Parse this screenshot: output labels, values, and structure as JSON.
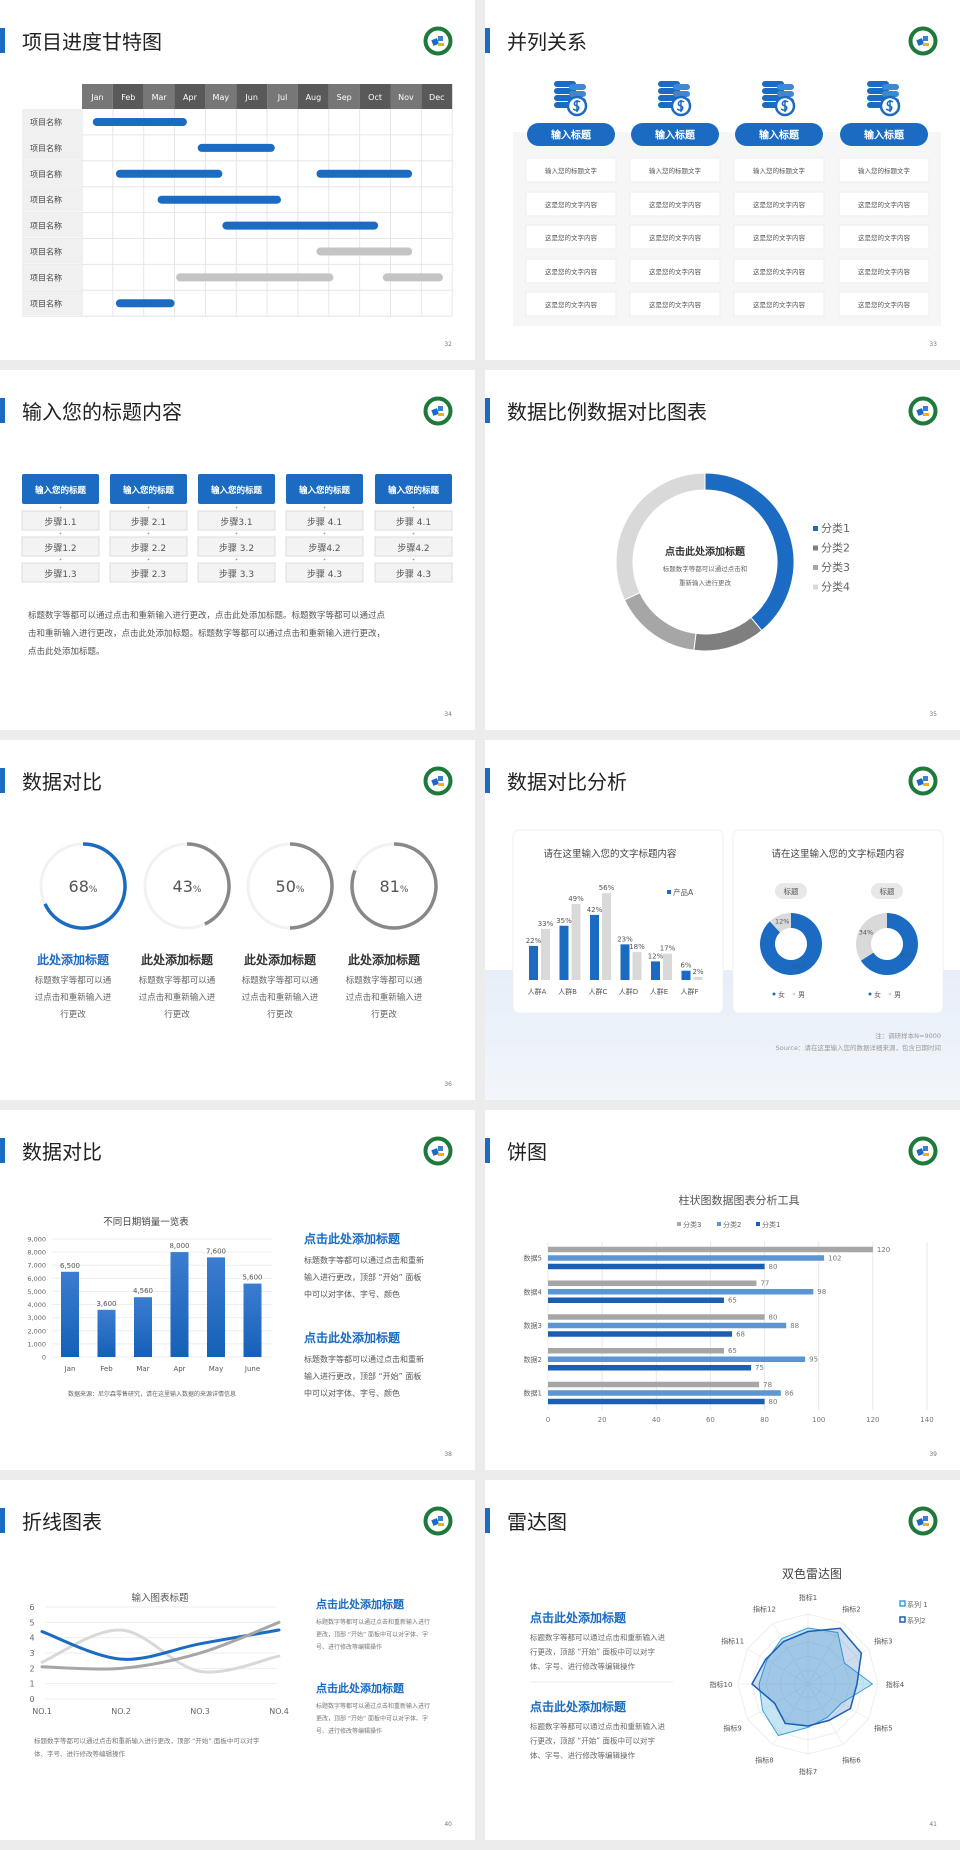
{
  "colors": {
    "accent": "#1a6bc1",
    "gray_dark": "#7f7f7f",
    "gray_mid": "#a6a6a6",
    "gray_light": "#d9d9d9",
    "logo_green": "#1e7a3a"
  },
  "logo_icon": "medical-emblem-icon",
  "slides": [
    {
      "page": "32",
      "title": "项目进度甘特图",
      "months": [
        "Jan",
        "Feb",
        "Mar",
        "Apr",
        "May",
        "Jun",
        "Jul",
        "Aug",
        "Sep",
        "Oct",
        "Nov",
        "Dec"
      ],
      "rows": [
        {
          "label": "项目名称",
          "bars": [
            {
              "start": 0.35,
              "end": 3.4,
              "color": "blue"
            }
          ]
        },
        {
          "label": "项目名称",
          "bars": [
            {
              "start": 3.75,
              "end": 6.25,
              "color": "blue"
            }
          ]
        },
        {
          "label": "项目名称",
          "bars": [
            {
              "start": 1.1,
              "end": 4.55,
              "color": "blue"
            },
            {
              "start": 7.6,
              "end": 10.7,
              "color": "blue"
            }
          ]
        },
        {
          "label": "项目名称",
          "bars": [
            {
              "start": 2.45,
              "end": 6.45,
              "color": "blue"
            }
          ]
        },
        {
          "label": "项目名称",
          "bars": [
            {
              "start": 4.55,
              "end": 9.6,
              "color": "blue"
            }
          ]
        },
        {
          "label": "项目名称",
          "bars": [
            {
              "start": 7.6,
              "end": 10.7,
              "color": "gray"
            }
          ]
        },
        {
          "label": "项目名称",
          "bars": [
            {
              "start": 3.05,
              "end": 8.15,
              "color": "gray"
            },
            {
              "start": 9.75,
              "end": 11.7,
              "color": "gray"
            }
          ]
        },
        {
          "label": "项目名称",
          "bars": [
            {
              "start": 1.1,
              "end": 3.0,
              "color": "blue"
            }
          ]
        }
      ]
    },
    {
      "page": "33",
      "title": "并列关系",
      "icon": "coin-stack-dollar-icon",
      "columns": [
        {
          "heading": "输入标题",
          "cells": [
            "输入您的标题文字",
            "这是您的文字内容",
            "这是您的文字内容",
            "这是您的文字内容",
            "这是您的文字内容"
          ]
        },
        {
          "heading": "输入标题",
          "cells": [
            "输入您的标题文字",
            "这是您的文字内容",
            "这是您的文字内容",
            "这是您的文字内容",
            "这是您的文字内容"
          ]
        },
        {
          "heading": "输入标题",
          "cells": [
            "输入您的标题文字",
            "这是您的文字内容",
            "这是您的文字内容",
            "这是您的文字内容",
            "这是您的文字内容"
          ]
        },
        {
          "heading": "输入标题",
          "cells": [
            "输入您的标题文字",
            "这是您的文字内容",
            "这是您的文字内容",
            "这是您的文字内容",
            "这是您的文字内容"
          ]
        }
      ]
    },
    {
      "page": "34",
      "title": "输入您的标题内容",
      "columns": [
        {
          "heading": "输入您的标题",
          "steps": [
            "步骤1.1",
            "步骤1.2",
            "步骤1.3"
          ]
        },
        {
          "heading": "输入您的标题",
          "steps": [
            "步骤 2.1",
            "步骤 2.2",
            "步骤 2.3"
          ]
        },
        {
          "heading": "输入您的标题",
          "steps": [
            "步骤3.1",
            "步骤 3.2",
            "步骤 3.3"
          ]
        },
        {
          "heading": "输入您的标题",
          "steps": [
            "步骤 4.1",
            "步骤4.2",
            "步骤 4.3"
          ]
        },
        {
          "heading": "输入您的标题",
          "steps": [
            "步骤 4.1",
            "步骤4.2",
            "步骤 4.3"
          ]
        }
      ],
      "paragraph": [
        "标题数字等都可以通过点击和重新输入进行更改，点击此处添加标题。标题数字等都可以通过点",
        "击和重新输入进行更改，点击此处添加标题。标题数字等都可以通过点击和重新输入进行更改，",
        "点击此处添加标题。"
      ]
    },
    {
      "page": "35",
      "title": "数据比例数据对比图表",
      "center_title": "点击此处添加标题",
      "center_body": [
        "标题数字等都可以通过点击和",
        "重新输入进行更改"
      ]
    },
    {
      "page": "36",
      "title": "数据对比",
      "percent_sign": "%",
      "items": [
        {
          "value": 68,
          "label": "68",
          "title": "此处添加标题",
          "body": [
            "标题数字等都可以通",
            "过点击和重新输入进",
            "行更改"
          ],
          "color": "#1a6bc1"
        },
        {
          "value": 43,
          "label": "43",
          "title": "此处添加标题",
          "body": [
            "标题数字等都可以通",
            "过点击和重新输入进",
            "行更改"
          ],
          "color": "#888888"
        },
        {
          "value": 50,
          "label": "50",
          "title": "此处添加标题",
          "body": [
            "标题数字等都可以通",
            "过点击和重新输入进",
            "行更改"
          ],
          "color": "#888888"
        },
        {
          "value": 81,
          "label": "81",
          "title": "此处添加标题",
          "body": [
            "标题数字等都可以通",
            "过点击和重新输入进",
            "行更改"
          ],
          "color": "#888888"
        }
      ]
    },
    {
      "page": "37",
      "title": "数据对比分析",
      "left_card_title": "请在这里输入您的文字标题内容",
      "right_card_title": "请在这里输入您的文字标题内容",
      "note": "注：调研样本N=9000",
      "source": "Source：请在这里输入您的数据详细来源，包含日期时间"
    },
    {
      "page": "38",
      "title": "数据对比",
      "source": "数据来源：尼尔森零售研究，请在这里输入数据的来源详情信息",
      "blocks": [
        {
          "title": "点击此处添加标题",
          "body": [
            "标题数字等都可以通过点击和重新",
            "输入进行更改，顶部 “开始” 面板",
            "中可以对字体、字号、颜色"
          ]
        },
        {
          "title": "点击此处添加标题",
          "body": [
            "标题数字等都可以通过点击和重新",
            "输入进行更改，顶部 “开始” 面板",
            "中可以对字体、字号、颜色"
          ]
        }
      ]
    },
    {
      "page": "39",
      "title": "饼图"
    },
    {
      "page": "40",
      "title": "折线图表",
      "body": [
        "标题数字等都可以通过点击和重新输入进行更改，顶部 “开始” 面板中可以对字",
        "体、字号、进行修改等编辑操作"
      ],
      "blocks": [
        {
          "title": "点击此处添加标题",
          "body": [
            "标题数字等都可以通过点击和重新输入进行",
            "更改，顶部 “开始” 面板中可以对字体、字",
            "号、进行修改等编辑操作"
          ]
        },
        {
          "title": "点击此处添加标题",
          "body": [
            "标题数字等都可以通过点击和重新输入进行",
            "更改，顶部 “开始” 面板中可以对字体、字",
            "号、进行修改等编辑操作"
          ]
        }
      ]
    },
    {
      "page": "41",
      "title": "雷达图",
      "blocks": [
        {
          "title": "点击此处添加标题",
          "body": [
            "标题数字等都可以通过点击和重新输入进",
            "行更改，顶部 “开始” 面板中可以对字",
            "体、字号、进行修改等编辑操作"
          ]
        },
        {
          "title": "点击此处添加标题",
          "body": [
            "标题数字等都可以通过点击和重新输入进",
            "行更改，顶部 “开始” 面板中可以对字",
            "体、字号、进行修改等编辑操作"
          ]
        }
      ]
    }
  ],
  "chart_data": [
    {
      "type": "pie",
      "donut": true,
      "legend": [
        "分类1",
        "分类2",
        "分类3",
        "分类4"
      ],
      "values": [
        39,
        13,
        16,
        32
      ],
      "colors": [
        "#1a6bc1",
        "#7f7f7f",
        "#a6a6a6",
        "#d9d9d9"
      ],
      "legend_position": "right"
    },
    {
      "type": "bar",
      "categories": [
        "人群A",
        "人群B",
        "人群C",
        "人群D",
        "人群E",
        "人群F"
      ],
      "series": [
        {
          "name": "产品A",
          "values": [
            22,
            35,
            42,
            23,
            12,
            6
          ],
          "labels": [
            "22%",
            "35%",
            "42%",
            "23%",
            "12%",
            "6%"
          ],
          "color": "#1a6bc1"
        },
        {
          "values": [
            33,
            49,
            56,
            18,
            17,
            2
          ],
          "labels": [
            "33%",
            "49%",
            "56%",
            "18%",
            "17%",
            "2%"
          ],
          "color": "#d9d9d9"
        }
      ],
      "unit": "%",
      "legend_position": "top-right"
    },
    {
      "type": "pie",
      "donut": true,
      "legend": [
        "女",
        "男"
      ],
      "colors": [
        "#1a6bc1",
        "#d9d9d9"
      ],
      "charts": [
        {
          "title": "标题",
          "values": [
            88,
            12
          ],
          "labels": [
            "88%",
            "12%"
          ]
        },
        {
          "title": "标题",
          "values": [
            66,
            34
          ],
          "labels": [
            "66%",
            "34%"
          ]
        }
      ],
      "legend_position": "bottom"
    },
    {
      "type": "bar",
      "title": "不同日期销量一览表",
      "categories": [
        "Jan",
        "Feb",
        "Mar",
        "Apr",
        "May",
        "June"
      ],
      "values": [
        6500,
        3600,
        4560,
        8000,
        7600,
        5600
      ],
      "labels": [
        "6,500",
        "3,600",
        "4,560",
        "8,000",
        "7,600",
        "5,600"
      ],
      "yticks": [
        "0",
        "1,000",
        "2,000",
        "3,000",
        "4,000",
        "5,000",
        "6,000",
        "7,000",
        "8,000",
        "9,000"
      ],
      "ylim": [
        0,
        9000
      ],
      "grid": true
    },
    {
      "type": "bar",
      "orientation": "horizontal",
      "title": "柱状图数据图表分析工具",
      "categories": [
        "数据1",
        "数据2",
        "数据3",
        "数据4",
        "数据5"
      ],
      "series": [
        {
          "name": "分类3",
          "values": [
            78,
            65,
            80,
            77,
            120
          ],
          "color": "#a6a6a6"
        },
        {
          "name": "分类2",
          "values": [
            86,
            95,
            88,
            98,
            102
          ],
          "color": "#5b95d3"
        },
        {
          "name": "分类1",
          "values": [
            80,
            75,
            68,
            65,
            80
          ],
          "color": "#1a5fb4"
        }
      ],
      "xticks": [
        "0",
        "20",
        "40",
        "60",
        "80",
        "100",
        "120",
        "140"
      ],
      "xlim": [
        0,
        140
      ],
      "grid": true,
      "legend_position": "top"
    },
    {
      "type": "line",
      "smooth": true,
      "title": "输入图表标题",
      "categories": [
        "NO.1",
        "NO.2",
        "NO.3",
        "NO.4"
      ],
      "series": [
        {
          "values": [
            2.4,
            4.5,
            1.8,
            2.8
          ],
          "color": "#d9d9d9"
        },
        {
          "values": [
            4.4,
            2.6,
            3.6,
            4.5
          ],
          "color": "#1a6bc1"
        },
        {
          "values": [
            2.1,
            2.0,
            3.0,
            5.0
          ],
          "color": "#a6a6a6"
        }
      ],
      "yticks": [
        "0",
        "1",
        "2",
        "3",
        "4",
        "5",
        "6"
      ],
      "ylim": [
        0,
        6
      ],
      "grid": true
    },
    {
      "type": "radar",
      "title": "双色雷达图",
      "axes": [
        "指标1",
        "指标2",
        "指标3",
        "指标4",
        "指标5",
        "指标6",
        "指标7",
        "指标8",
        "指标9",
        "指标10",
        "指标11",
        "指标12"
      ],
      "series": [
        {
          "name": "系列 1",
          "values": [
            80,
            85,
            60,
            92,
            55,
            55,
            62,
            85,
            75,
            70,
            68,
            75
          ],
          "color": "#3aa0d8"
        },
        {
          "name": "系列2",
          "values": [
            75,
            92,
            88,
            70,
            70,
            60,
            60,
            65,
            55,
            80,
            70,
            70
          ],
          "color": "#1a5fb4"
        }
      ],
      "rmax": 100,
      "legend_position": "top-right"
    }
  ]
}
